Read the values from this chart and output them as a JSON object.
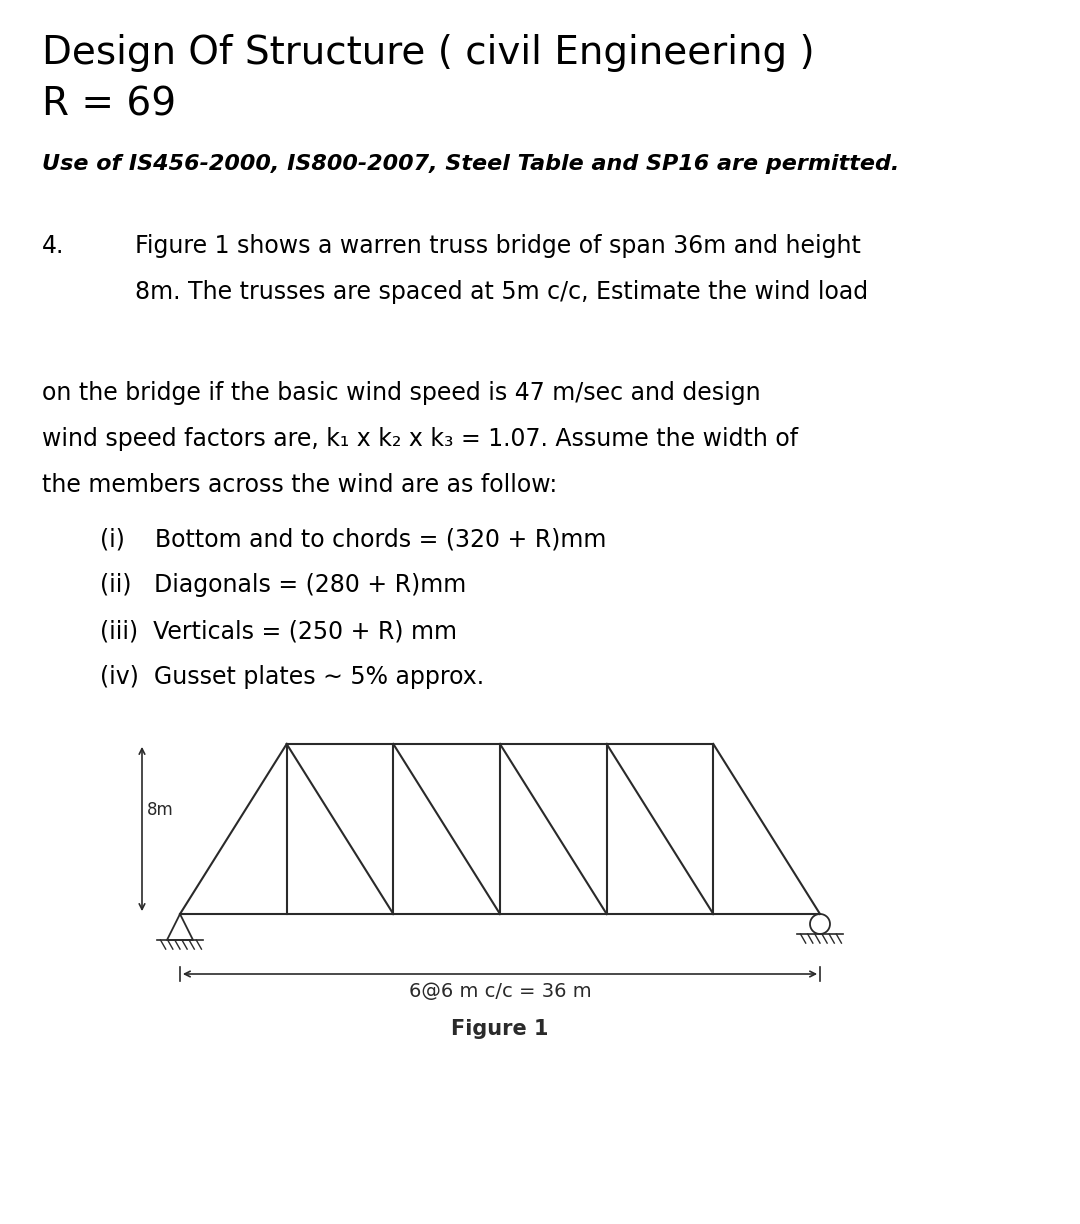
{
  "title": "Design Of Structure ( civil Engineering )",
  "R_line": "R = 69",
  "italic_line": "Use of IS456-2000, IS800-2007, Steel Table and SP16 are permitted.",
  "q_num": "4.",
  "q_text_line1": "Figure 1 shows a warren truss bridge of span 36m and height",
  "q_text_line2": "8m. The trusses are spaced at 5m c/c, Estimate the wind load",
  "q_text_line4": "on the bridge if the basic wind speed is 47 m/sec and design",
  "q_text_line5": "wind speed factors are, k₁ x k₂ x k₃ = 1.07. Assume the width of",
  "q_text_line6": "the members across the wind are as follow:",
  "items": [
    "(i)    Bottom and to chords = (320 + R)mm",
    "(ii)   Diagonals = (280 + R)mm",
    "(iii)  Verticals = (250 + R) mm",
    "(iv)  Gusset plates ∼ 5% approx."
  ],
  "fig_label": "Figure 1",
  "dim_label": "6@6 m c/c = 36 m",
  "height_label": "8m",
  "bg_color": "#ffffff",
  "text_color": "#000000",
  "truss_color": "#2a2a2a",
  "title_fontsize": 28,
  "body_fontsize": 17,
  "item_fontsize": 17
}
